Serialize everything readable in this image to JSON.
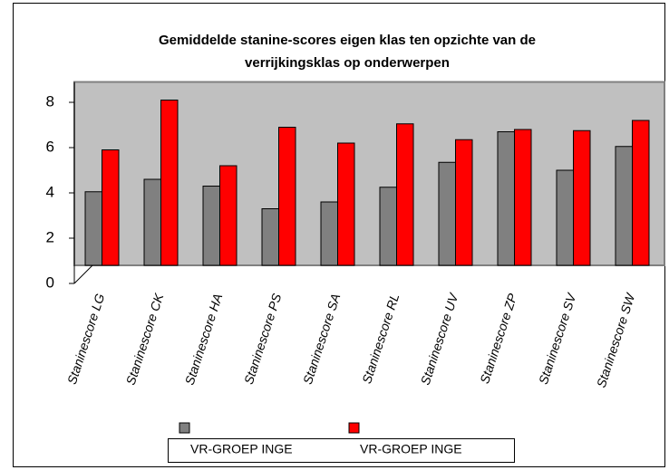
{
  "chart_data": {
    "type": "bar",
    "title": [
      "Gemiddelde stanine-scores eigen klas ten opzichte van de",
      "verrijkingsklas op onderwerpen"
    ],
    "categories": [
      "Staninescore LG",
      "Staninescore CK",
      "Staninescore HA",
      "Staninescore PS",
      "Staninescore SA",
      "Staninescore RL",
      "Staninescore UV",
      "Staninescore ZP",
      "Staninescore SV",
      "Staninescore SW"
    ],
    "series": [
      {
        "name": "VR-GROEP INGE",
        "color": "#808080",
        "values": [
          4.05,
          4.6,
          4.3,
          3.3,
          3.6,
          4.25,
          5.35,
          6.7,
          5.0,
          6.05
        ]
      },
      {
        "name": "VR-GROEP INGE",
        "color": "#ff0000",
        "values": [
          5.9,
          8.1,
          5.2,
          6.9,
          6.2,
          7.05,
          6.35,
          6.8,
          6.75,
          7.2
        ]
      }
    ],
    "ylim": [
      0,
      8.9
    ],
    "yticks": [
      0,
      2,
      4,
      6,
      8
    ],
    "wall_color": "#c0c0c0",
    "legend": "bottom"
  }
}
